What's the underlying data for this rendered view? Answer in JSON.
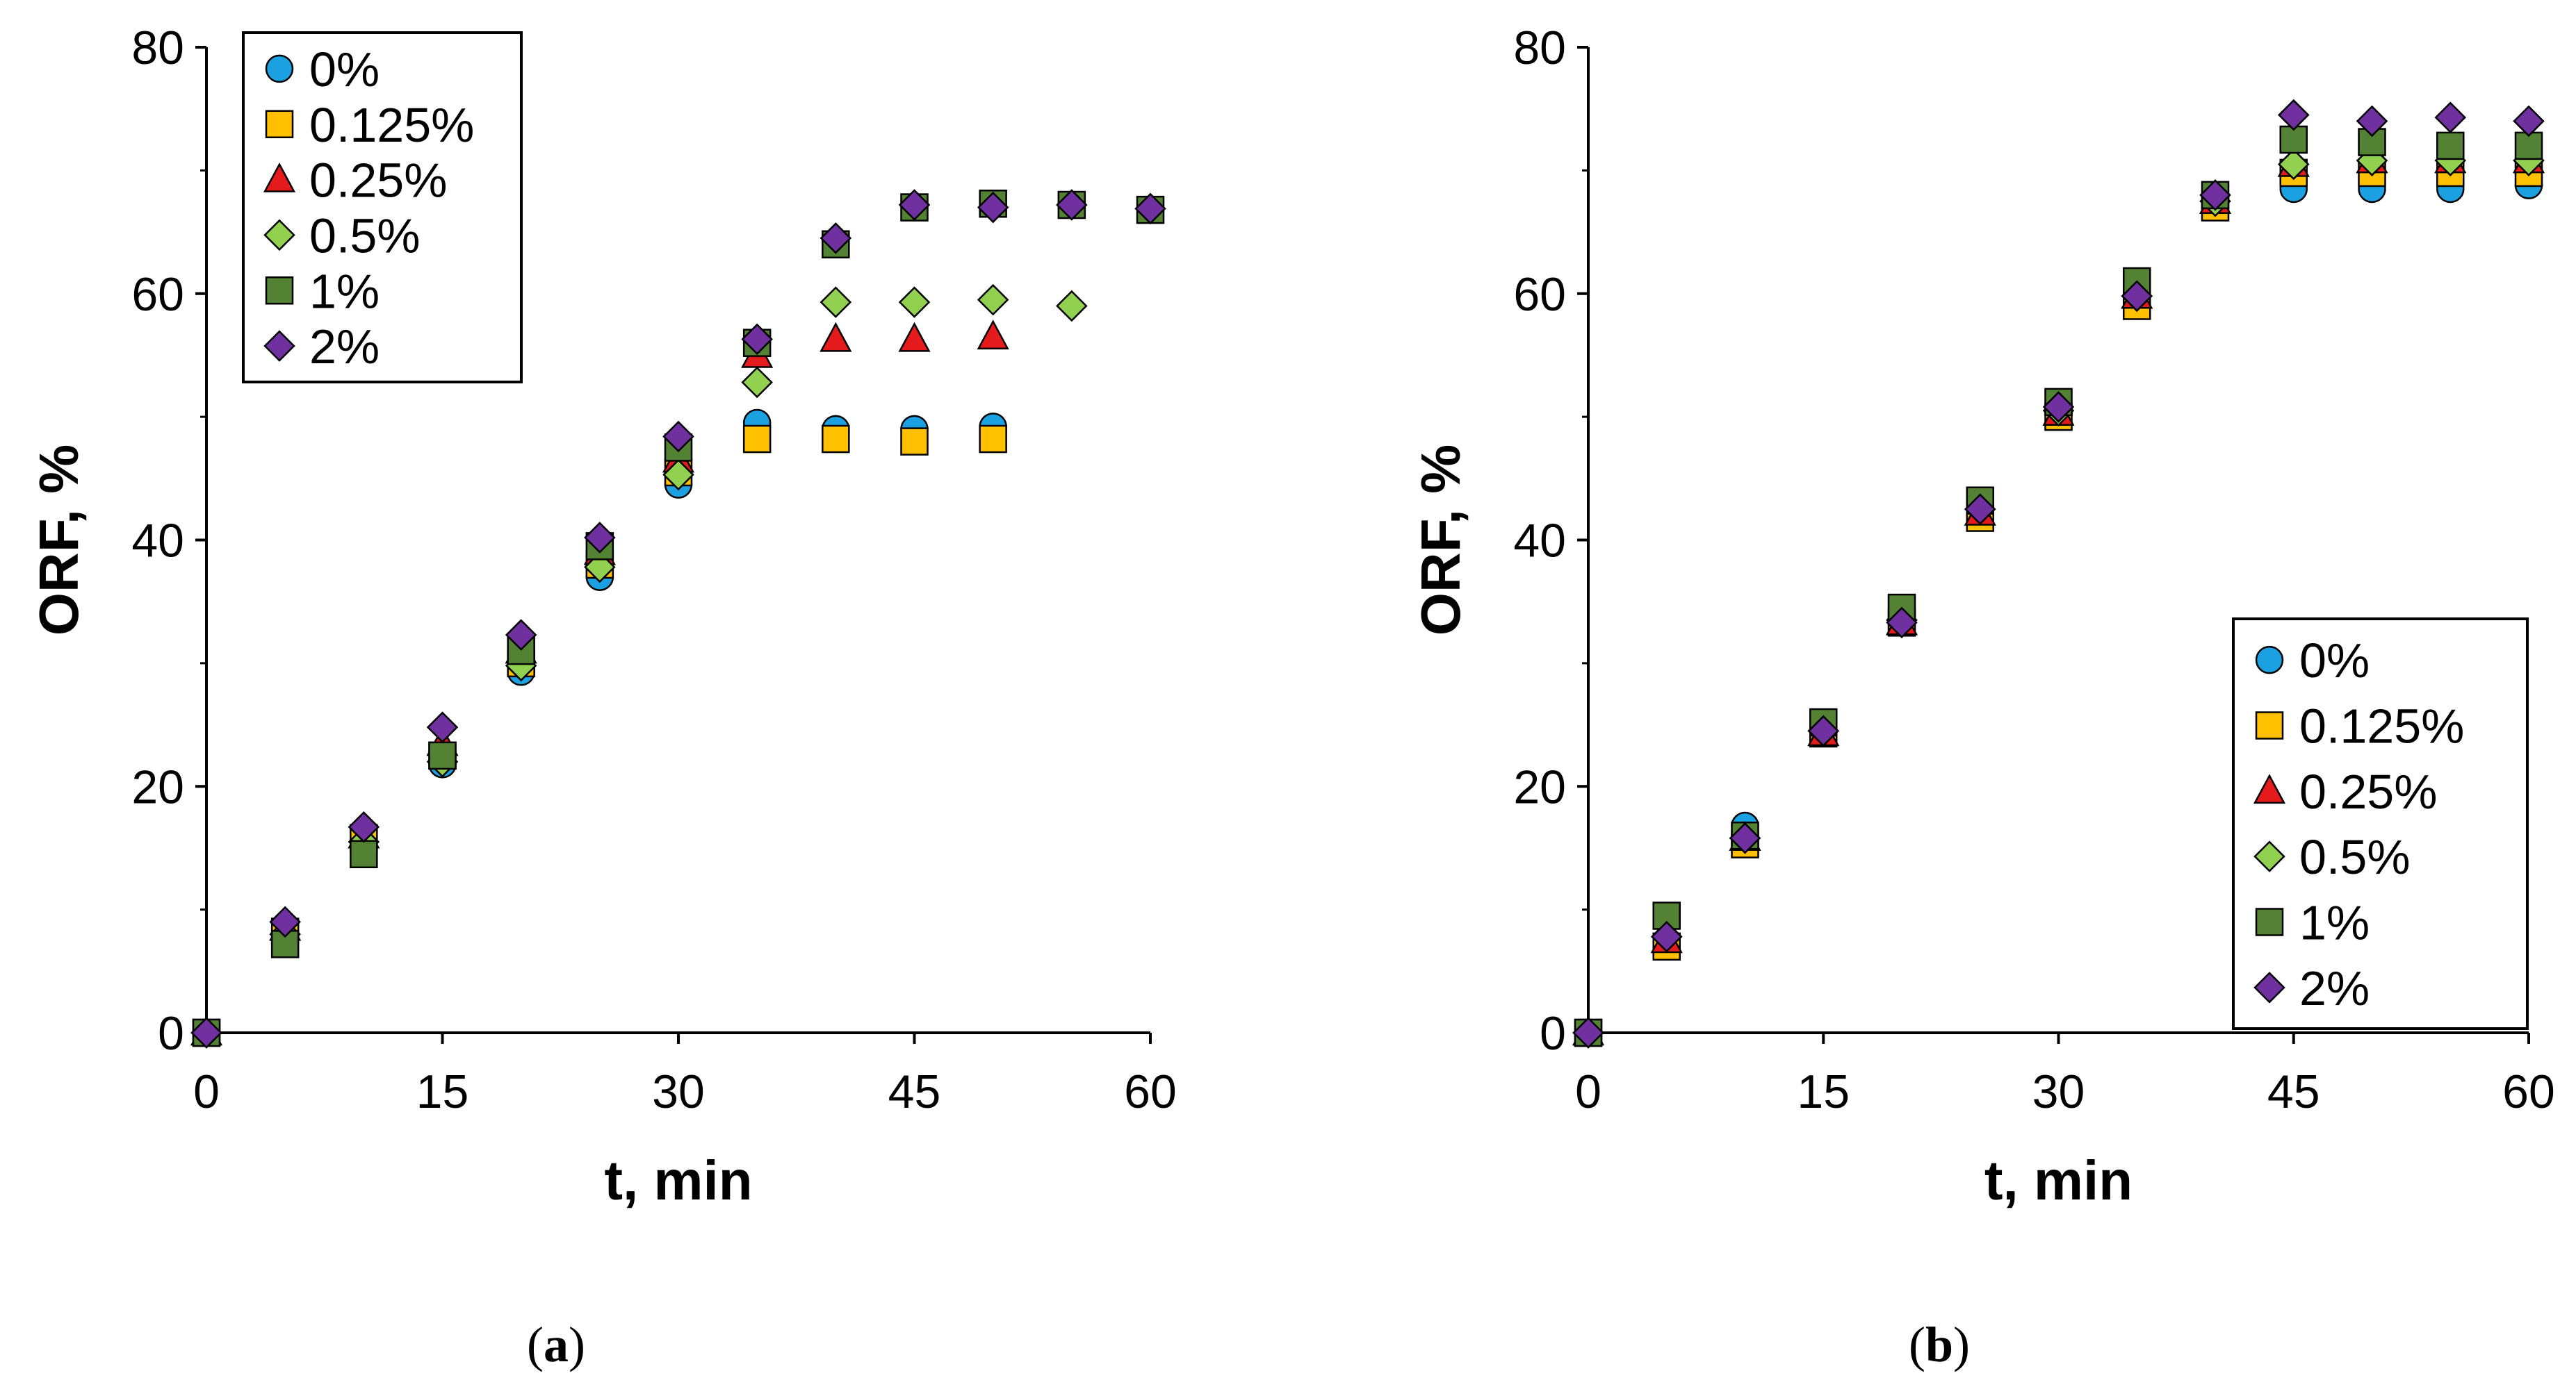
{
  "chart_data": [
    {
      "type": "scatter",
      "panel_label": "a",
      "xlabel": "t, min",
      "ylabel": "ORF, %",
      "xlim": [
        0,
        60
      ],
      "ylim": [
        0,
        80
      ],
      "xticks": [
        "0",
        "15",
        "30",
        "45",
        "60"
      ],
      "yticks": [
        "0",
        "20",
        "40",
        "60",
        "80"
      ],
      "legend_position": "top-left",
      "series": [
        {
          "name": "0%",
          "marker": "circle",
          "color": "#1ba1e2",
          "x": [
            0,
            5,
            10,
            15,
            20,
            25,
            30,
            35,
            40,
            45,
            50
          ],
          "y": [
            0,
            8.0,
            15.5,
            21.8,
            29.3,
            37.0,
            44.5,
            49.5,
            49.0,
            49.0,
            49.2
          ]
        },
        {
          "name": "0.125%",
          "marker": "square",
          "color": "#ffc000",
          "x": [
            0,
            5,
            10,
            15,
            20,
            25,
            30,
            35,
            40,
            45,
            50
          ],
          "y": [
            0,
            8.2,
            15.8,
            22.5,
            30.0,
            38.0,
            45.5,
            48.2,
            48.2,
            48.0,
            48.2
          ]
        },
        {
          "name": "0.25%",
          "marker": "triangle",
          "color": "#e41a1c",
          "x": [
            0,
            5,
            10,
            15,
            20,
            25,
            30,
            35,
            40,
            45,
            50
          ],
          "y": [
            0,
            8.5,
            16.0,
            23.5,
            31.0,
            39.0,
            46.5,
            55.0,
            56.3,
            56.3,
            56.5
          ]
        },
        {
          "name": "0.5%",
          "marker": "diamond",
          "color": "#92d050",
          "x": [
            0,
            5,
            10,
            15,
            20,
            25,
            30,
            35,
            40,
            45,
            50,
            55
          ],
          "y": [
            0,
            8.0,
            15.5,
            22.0,
            29.8,
            37.8,
            45.3,
            52.8,
            59.3,
            59.3,
            59.5,
            59.0
          ]
        },
        {
          "name": "1%",
          "marker": "square",
          "color": "#548235",
          "x": [
            0,
            5,
            10,
            15,
            20,
            25,
            30,
            35,
            40,
            45,
            50,
            55,
            60
          ],
          "y": [
            0,
            7.2,
            14.5,
            22.5,
            31.0,
            39.5,
            47.5,
            56.0,
            64.0,
            67.0,
            67.3,
            67.2,
            66.8
          ]
        },
        {
          "name": "2%",
          "marker": "diamond",
          "color": "#7030a0",
          "x": [
            0,
            5,
            10,
            15,
            20,
            25,
            30,
            35,
            40,
            45,
            50,
            55,
            60
          ],
          "y": [
            0,
            9.0,
            16.7,
            24.8,
            32.3,
            40.2,
            48.4,
            56.3,
            64.5,
            67.2,
            67.0,
            67.2,
            66.9
          ]
        }
      ]
    },
    {
      "type": "scatter",
      "panel_label": "b",
      "xlabel": "t, min",
      "ylabel": "ORF, %",
      "xlim": [
        0,
        60
      ],
      "ylim": [
        0,
        80
      ],
      "xticks": [
        "0",
        "15",
        "30",
        "45",
        "60"
      ],
      "yticks": [
        "0",
        "20",
        "40",
        "60",
        "80"
      ],
      "legend_position": "bottom-right",
      "series": [
        {
          "name": "0%",
          "marker": "circle",
          "color": "#1ba1e2",
          "x": [
            0,
            5,
            10,
            15,
            20,
            25,
            30,
            35,
            40,
            45,
            50,
            55,
            60
          ],
          "y": [
            0,
            7.5,
            16.8,
            24.5,
            33.5,
            42.0,
            50.5,
            59.5,
            67.5,
            68.5,
            68.5,
            68.5,
            68.8
          ]
        },
        {
          "name": "0.125%",
          "marker": "square",
          "color": "#ffc000",
          "x": [
            0,
            5,
            10,
            15,
            20,
            25,
            30,
            35,
            40,
            45,
            50,
            55,
            60
          ],
          "y": [
            0,
            7.0,
            15.3,
            24.3,
            33.3,
            41.8,
            50.0,
            59.0,
            67.0,
            69.8,
            69.8,
            69.8,
            69.8
          ]
        },
        {
          "name": "0.25%",
          "marker": "triangle",
          "color": "#e41a1c",
          "x": [
            0,
            5,
            10,
            15,
            20,
            25,
            30,
            35,
            40,
            45,
            50,
            55,
            60
          ],
          "y": [
            0,
            7.5,
            15.8,
            24.3,
            33.3,
            42.2,
            50.3,
            59.8,
            67.5,
            70.5,
            70.8,
            70.8,
            70.8
          ]
        },
        {
          "name": "0.5%",
          "marker": "diamond",
          "color": "#92d050",
          "x": [
            0,
            5,
            10,
            15,
            20,
            25,
            30,
            35,
            40,
            45,
            50,
            55,
            60
          ],
          "y": [
            0,
            7.8,
            15.8,
            24.5,
            33.5,
            42.5,
            50.5,
            59.8,
            67.5,
            70.5,
            70.8,
            70.8,
            70.8
          ]
        },
        {
          "name": "1%",
          "marker": "square",
          "color": "#548235",
          "x": [
            0,
            5,
            10,
            15,
            20,
            25,
            30,
            35,
            40,
            45,
            50,
            55,
            60
          ],
          "y": [
            0,
            9.5,
            16.0,
            25.2,
            34.5,
            43.2,
            51.2,
            61.0,
            68.0,
            72.5,
            72.3,
            72.0,
            72.0
          ]
        },
        {
          "name": "2%",
          "marker": "diamond",
          "color": "#7030a0",
          "x": [
            0,
            5,
            10,
            15,
            20,
            25,
            30,
            35,
            40,
            45,
            50,
            55,
            60
          ],
          "y": [
            0,
            7.8,
            15.8,
            24.5,
            33.3,
            42.5,
            50.8,
            59.8,
            68.0,
            74.5,
            74.0,
            74.3,
            74.0
          ]
        }
      ]
    }
  ],
  "captions": [
    {
      "open": "(",
      "letter": "a",
      "close": ")"
    },
    {
      "open": "(",
      "letter": "b",
      "close": ")"
    }
  ]
}
